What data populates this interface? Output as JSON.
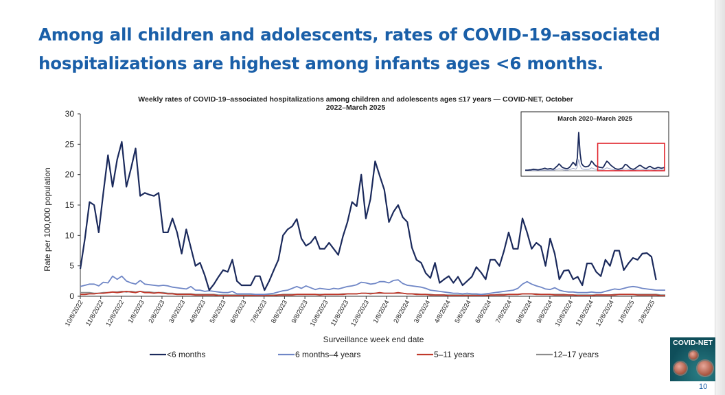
{
  "slide": {
    "title_line1": "Among all children and adolescents, rates of COVID-19–associated",
    "title_line2": "hospitalizations are highest among infants ages <6 months.",
    "page_number": "10",
    "logo_text": "COVID-NET"
  },
  "chart_data": {
    "type": "line",
    "title": "Weekly rates of COVID-19–associated hospitalizations among children and adolescents ages ≤17 years — COVID-NET, October 2022–March 2025",
    "title_line1": "Weekly rates of COVID-19–associated hospitalizations among children and adolescents ages ≤17 years — COVID-NET, October",
    "title_line2": "2022–March 2025",
    "xlabel": "Surveillance week end date",
    "ylabel": "Rate per 100,000 population",
    "ylim": [
      0,
      30
    ],
    "yticks": [
      "0",
      "5",
      "10",
      "15",
      "20",
      "25",
      "30"
    ],
    "weeks_total": 128,
    "xticks": [
      "10/8/2022",
      "11/8/2022",
      "12/8/2022",
      "1/8/2023",
      "2/8/2023",
      "3/8/2023",
      "4/8/2023",
      "5/8/2023",
      "6/8/2023",
      "7/8/2023",
      "8/8/2023",
      "9/8/2023",
      "10/8/2023",
      "11/8/2023",
      "12/8/2023",
      "1/8/2024",
      "2/8/2024",
      "3/8/2024",
      "4/8/2024",
      "5/8/2024",
      "6/8/2024",
      "7/8/2024",
      "8/8/2024",
      "9/8/2024",
      "10/8/2024",
      "11/8/2024",
      "12/8/2024",
      "1/8/2025",
      "2/8/2025"
    ],
    "series": [
      {
        "name": "<6 months",
        "color": "#1b2a5c",
        "values": [
          4.5,
          9.5,
          15.5,
          15.0,
          10.5,
          17.0,
          23.2,
          18.0,
          22.5,
          25.4,
          18.0,
          21.0,
          24.3,
          16.5,
          17.0,
          16.7,
          16.5,
          17.0,
          10.5,
          10.5,
          12.8,
          10.5,
          7.0,
          11.0,
          8.0,
          5.0,
          5.5,
          3.5,
          1.0,
          2.0,
          3.2,
          4.3,
          4.0,
          6.0,
          2.5,
          1.8,
          1.8,
          1.8,
          3.3,
          3.3,
          1.0,
          2.5,
          4.3,
          6.0,
          10.0,
          11.0,
          11.5,
          12.7,
          9.5,
          8.3,
          8.8,
          9.8,
          7.8,
          7.8,
          8.8,
          7.8,
          6.8,
          9.8,
          12.2,
          15.5,
          14.8,
          20.0,
          12.8,
          16.0,
          22.2,
          19.8,
          17.5,
          12.2,
          13.9,
          15.0,
          13.0,
          12.2,
          8.0,
          6.0,
          5.5,
          3.8,
          3.0,
          5.5,
          2.2,
          2.8,
          3.3,
          2.2,
          3.2,
          1.8,
          2.5,
          3.2,
          4.8,
          3.9,
          2.8,
          6.0,
          6.0,
          5.0,
          7.5,
          10.5,
          7.8,
          7.8,
          12.8,
          10.5,
          7.8,
          8.8,
          8.2,
          5.0,
          9.5,
          7.0,
          2.8,
          4.2,
          4.3,
          2.8,
          3.2,
          1.8,
          5.4,
          5.4,
          4.0,
          3.3,
          6.0,
          5.0,
          7.5,
          7.5,
          4.3,
          5.4,
          6.3,
          6.0,
          7.0,
          7.1,
          6.5,
          2.7
        ]
      },
      {
        "name": "6 months–4 years",
        "color": "#6f86c6",
        "values": [
          1.6,
          1.8,
          2.0,
          2.0,
          1.7,
          2.3,
          2.2,
          3.3,
          2.8,
          3.3,
          2.5,
          2.2,
          2.0,
          2.6,
          2.0,
          1.9,
          1.8,
          1.7,
          1.8,
          1.7,
          1.5,
          1.4,
          1.3,
          1.2,
          1.6,
          1.0,
          1.0,
          0.8,
          0.9,
          0.8,
          0.7,
          0.6,
          0.6,
          0.8,
          0.4,
          0.4,
          0.4,
          0.4,
          0.3,
          0.3,
          0.3,
          0.4,
          0.5,
          0.7,
          0.9,
          1.0,
          1.3,
          1.6,
          1.3,
          1.7,
          1.4,
          1.1,
          1.3,
          1.2,
          1.1,
          1.3,
          1.2,
          1.4,
          1.6,
          1.7,
          1.9,
          2.3,
          2.2,
          2.0,
          2.1,
          2.4,
          2.4,
          2.2,
          2.6,
          2.7,
          2.1,
          1.8,
          1.7,
          1.6,
          1.5,
          1.3,
          1.0,
          0.9,
          0.8,
          0.7,
          0.6,
          0.5,
          0.5,
          0.4,
          0.5,
          0.4,
          0.4,
          0.3,
          0.4,
          0.5,
          0.6,
          0.7,
          0.8,
          0.9,
          1.0,
          1.3,
          2.0,
          2.4,
          2.0,
          1.7,
          1.5,
          1.2,
          1.1,
          1.4,
          1.0,
          0.8,
          0.7,
          0.7,
          0.6,
          0.6,
          0.6,
          0.7,
          0.6,
          0.6,
          0.8,
          1.0,
          1.2,
          1.1,
          1.3,
          1.5,
          1.6,
          1.5,
          1.3,
          1.2,
          1.1,
          1.0,
          1.0,
          1.0
        ]
      },
      {
        "name": "5–11 years",
        "color": "#c0392b",
        "values": [
          0.3,
          0.3,
          0.4,
          0.4,
          0.5,
          0.5,
          0.6,
          0.7,
          0.6,
          0.7,
          0.8,
          0.7,
          0.6,
          0.8,
          0.6,
          0.6,
          0.5,
          0.6,
          0.5,
          0.4,
          0.4,
          0.3,
          0.3,
          0.3,
          0.3,
          0.2,
          0.2,
          0.2,
          0.2,
          0.2,
          0.1,
          0.1,
          0.1,
          0.1,
          0.1,
          0.1,
          0.1,
          0.1,
          0.1,
          0.1,
          0.1,
          0.1,
          0.1,
          0.2,
          0.2,
          0.2,
          0.2,
          0.3,
          0.3,
          0.3,
          0.3,
          0.3,
          0.2,
          0.3,
          0.3,
          0.3,
          0.3,
          0.3,
          0.4,
          0.4,
          0.4,
          0.5,
          0.5,
          0.4,
          0.5,
          0.6,
          0.5,
          0.5,
          0.5,
          0.6,
          0.5,
          0.4,
          0.4,
          0.3,
          0.3,
          0.3,
          0.2,
          0.2,
          0.2,
          0.2,
          0.1,
          0.1,
          0.1,
          0.1,
          0.1,
          0.1,
          0.1,
          0.1,
          0.1,
          0.2,
          0.2,
          0.2,
          0.2,
          0.3,
          0.3,
          0.3,
          0.4,
          0.4,
          0.4,
          0.3,
          0.3,
          0.3,
          0.3,
          0.2,
          0.2,
          0.2,
          0.2,
          0.2,
          0.1,
          0.1,
          0.1,
          0.1,
          0.2,
          0.2,
          0.2,
          0.2,
          0.2,
          0.3,
          0.3,
          0.3,
          0.3,
          0.2,
          0.2,
          0.2,
          0.2,
          0.2,
          0.1,
          0.1
        ]
      },
      {
        "name": "12–17 years",
        "color": "#8c8c8c",
        "values": [
          0.6,
          0.6,
          0.6,
          0.5,
          0.5,
          0.6,
          0.6,
          0.7,
          0.7,
          0.8,
          0.7,
          0.8,
          0.7,
          0.8,
          0.7,
          0.7,
          0.6,
          0.6,
          0.6,
          0.5,
          0.5,
          0.4,
          0.4,
          0.4,
          0.4,
          0.3,
          0.3,
          0.3,
          0.3,
          0.3,
          0.2,
          0.2,
          0.2,
          0.2,
          0.2,
          0.2,
          0.2,
          0.2,
          0.2,
          0.2,
          0.2,
          0.2,
          0.2,
          0.2,
          0.3,
          0.3,
          0.3,
          0.3,
          0.3,
          0.3,
          0.3,
          0.3,
          0.3,
          0.3,
          0.3,
          0.3,
          0.3,
          0.4,
          0.4,
          0.4,
          0.4,
          0.5,
          0.5,
          0.5,
          0.5,
          0.5,
          0.5,
          0.5,
          0.5,
          0.5,
          0.5,
          0.4,
          0.4,
          0.4,
          0.3,
          0.3,
          0.3,
          0.2,
          0.2,
          0.2,
          0.2,
          0.2,
          0.2,
          0.2,
          0.2,
          0.2,
          0.2,
          0.2,
          0.2,
          0.2,
          0.2,
          0.3,
          0.3,
          0.3,
          0.3,
          0.3,
          0.4,
          0.4,
          0.4,
          0.4,
          0.3,
          0.3,
          0.3,
          0.3,
          0.3,
          0.3,
          0.2,
          0.2,
          0.2,
          0.2,
          0.2,
          0.2,
          0.2,
          0.2,
          0.2,
          0.2,
          0.3,
          0.3,
          0.3,
          0.3,
          0.3,
          0.3,
          0.3,
          0.3,
          0.3,
          0.3,
          0.2,
          0.2
        ]
      }
    ],
    "legend_position": "bottom",
    "inset": {
      "title": "March 2020–March 2025",
      "values": [
        0.3,
        0.3,
        0.3,
        0.4,
        0.4,
        0.6,
        0.7,
        0.6,
        0.5,
        0.4,
        0.5,
        0.7,
        0.8,
        1.0,
        1.2,
        0.9,
        0.8,
        0.9,
        1.0,
        0.8,
        0.7,
        1.2,
        1.8,
        2.4,
        3.2,
        2.6,
        1.8,
        1.4,
        1.2,
        1.0,
        1.0,
        1.4,
        2.0,
        3.0,
        4.0,
        3.2,
        2.4,
        6.0,
        18.0,
        8.0,
        3.5,
        2.5,
        2.0,
        1.8,
        2.0,
        2.2,
        3.0,
        4.5,
        4.0,
        3.0,
        2.4,
        2.0,
        1.8,
        1.6,
        1.5,
        1.4,
        2.2,
        3.5,
        4.5,
        4.0,
        3.2,
        2.5,
        2.0,
        1.5,
        1.0,
        0.8,
        0.7,
        0.8,
        1.0,
        1.2,
        2.0,
        3.0,
        2.8,
        2.2,
        1.5,
        1.0,
        0.8,
        0.7,
        1.0,
        1.5,
        2.0,
        2.5,
        2.5,
        2.0,
        1.5,
        1.2,
        1.0,
        1.5,
        2.0,
        2.0,
        1.5,
        1.2,
        1.0,
        1.2,
        1.5,
        1.5,
        1.3,
        1.2,
        1.4,
        1.5
      ],
      "ylim": [
        0,
        20
      ],
      "highlight_fraction": [
        0.52,
        1.0
      ]
    }
  }
}
